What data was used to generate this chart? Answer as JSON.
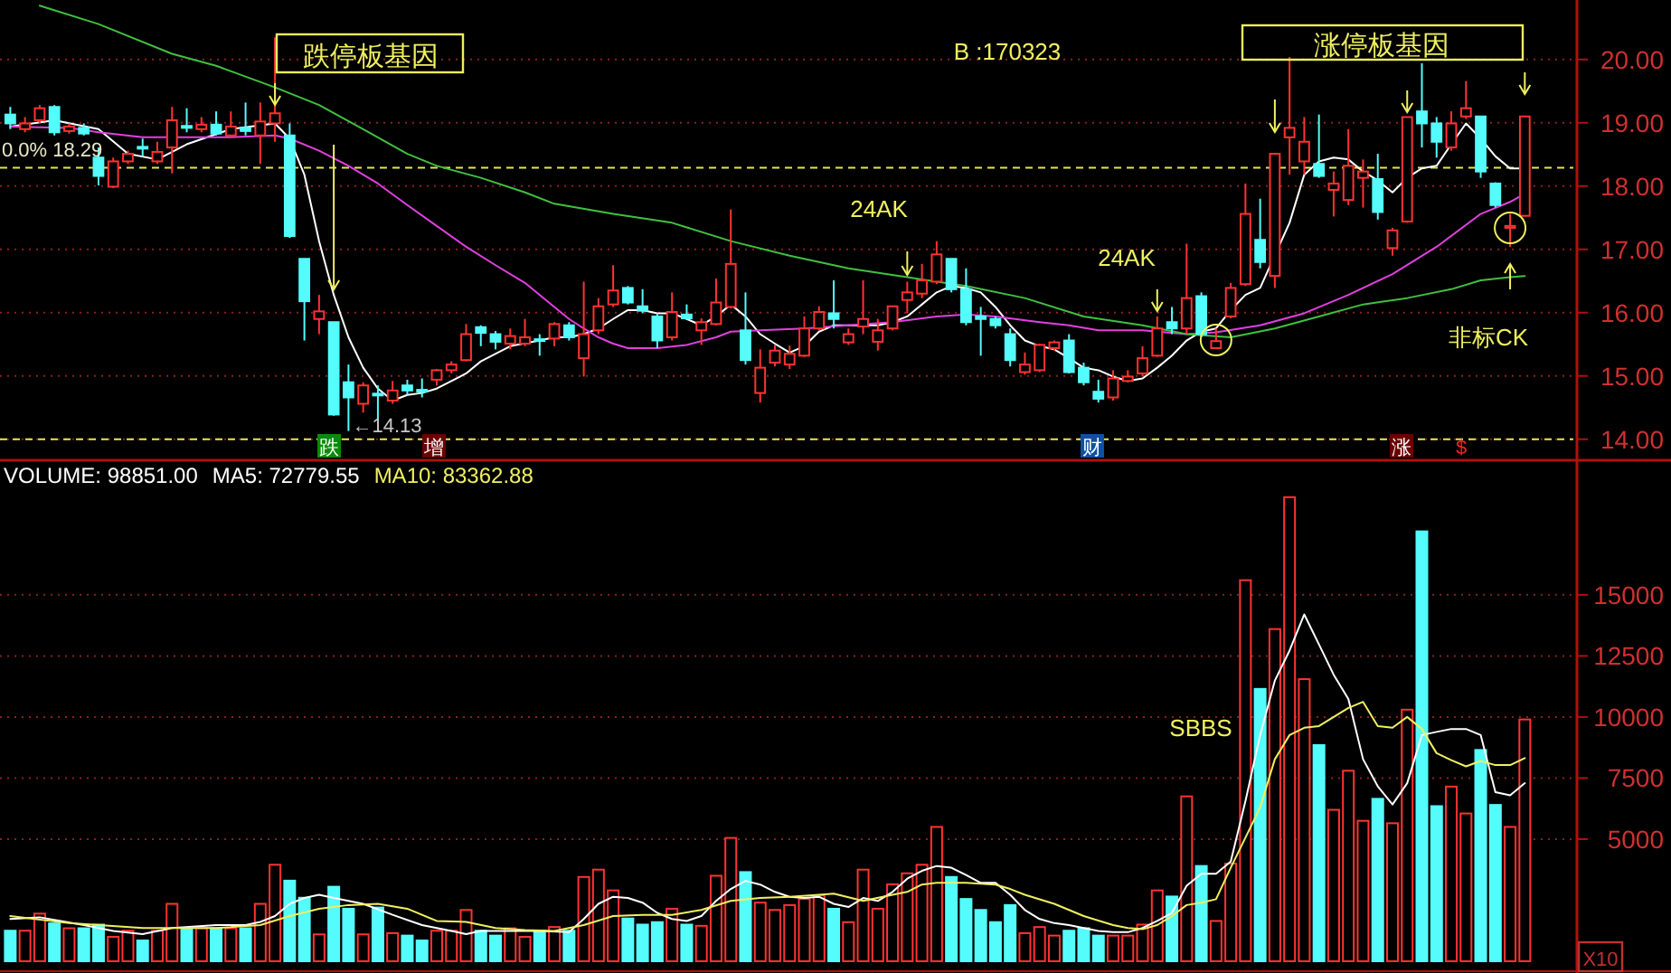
{
  "chart_data": [
    {
      "type": "candlestick",
      "categories": [
        null,
        null,
        null,
        null,
        null,
        null,
        null,
        null,
        null,
        null,
        null,
        null,
        null,
        null,
        null,
        null,
        null,
        null,
        null,
        null,
        null,
        null,
        null,
        null,
        null,
        null,
        null,
        null,
        null,
        null,
        null,
        null,
        null,
        null,
        null,
        null,
        null,
        null,
        null,
        null,
        null,
        null,
        null,
        null,
        null,
        null,
        null,
        null,
        null,
        null,
        null,
        null,
        null,
        null,
        null,
        null,
        null,
        null,
        null,
        null,
        null,
        null,
        null,
        null,
        null,
        null,
        null,
        null,
        null,
        null,
        null,
        null,
        null,
        null,
        null,
        null,
        null,
        null,
        null,
        null,
        null,
        null,
        null,
        null,
        null,
        null,
        null,
        null,
        null,
        null,
        null,
        null,
        null,
        null,
        null,
        null,
        null,
        null,
        null,
        null,
        null,
        null,
        null,
        null
      ],
      "ohlc": [
        [
          19.13,
          19.25,
          18.9,
          18.99
        ],
        [
          18.9,
          19.09,
          18.85,
          18.99
        ],
        [
          19.04,
          19.28,
          18.99,
          19.23
        ],
        [
          19.25,
          19.28,
          18.8,
          18.85
        ],
        [
          18.87,
          18.99,
          18.83,
          18.94
        ],
        [
          18.92,
          18.99,
          18.8,
          18.83
        ],
        [
          18.45,
          18.61,
          18.01,
          18.16
        ],
        [
          17.99,
          18.45,
          17.97,
          18.39
        ],
        [
          18.39,
          18.56,
          18.35,
          18.51
        ],
        [
          18.62,
          18.75,
          18.47,
          18.6
        ],
        [
          18.39,
          18.7,
          18.35,
          18.54
        ],
        [
          18.61,
          19.25,
          18.2,
          19.04
        ],
        [
          18.95,
          19.23,
          18.85,
          18.92
        ],
        [
          18.9,
          19.09,
          18.85,
          18.97
        ],
        [
          18.97,
          19.18,
          18.8,
          18.83
        ],
        [
          18.8,
          19.18,
          18.77,
          18.94
        ],
        [
          18.92,
          19.32,
          18.8,
          18.87
        ],
        [
          18.8,
          19.32,
          18.35,
          19.02
        ],
        [
          18.99,
          20.35,
          18.7,
          19.15
        ],
        [
          18.8,
          18.99,
          17.18,
          17.21
        ],
        [
          16.85,
          16.85,
          15.56,
          16.18
        ],
        [
          15.9,
          16.28,
          15.66,
          16.02
        ],
        [
          15.85,
          15.85,
          14.37,
          14.39
        ],
        [
          14.9,
          15.18,
          14.13,
          14.66
        ],
        [
          14.56,
          14.9,
          14.42,
          14.85
        ],
        [
          14.72,
          14.85,
          14.28,
          14.7
        ],
        [
          14.61,
          14.92,
          14.56,
          14.77
        ],
        [
          14.85,
          14.94,
          14.7,
          14.77
        ],
        [
          14.78,
          14.96,
          14.66,
          14.76
        ],
        [
          14.94,
          15.11,
          14.85,
          15.09
        ],
        [
          15.09,
          15.23,
          15.04,
          15.18
        ],
        [
          15.25,
          15.82,
          15.23,
          15.66
        ],
        [
          15.77,
          15.8,
          15.47,
          15.68
        ],
        [
          15.66,
          15.71,
          15.42,
          15.54
        ],
        [
          15.51,
          15.75,
          15.42,
          15.63
        ],
        [
          15.51,
          15.9,
          15.47,
          15.61
        ],
        [
          15.58,
          15.66,
          15.32,
          15.56
        ],
        [
          15.59,
          15.85,
          15.47,
          15.82
        ],
        [
          15.8,
          15.85,
          15.56,
          15.61
        ],
        [
          15.28,
          16.49,
          14.99,
          15.66
        ],
        [
          15.72,
          16.23,
          15.66,
          16.1
        ],
        [
          16.13,
          16.75,
          16.09,
          16.35
        ],
        [
          16.39,
          16.42,
          16.13,
          16.16
        ],
        [
          16.1,
          16.37,
          15.99,
          16.03
        ],
        [
          15.94,
          15.99,
          15.44,
          15.56
        ],
        [
          15.61,
          16.32,
          15.56,
          16.01
        ],
        [
          15.97,
          16.13,
          15.9,
          15.91
        ],
        [
          15.72,
          15.91,
          15.49,
          15.85
        ],
        [
          15.82,
          16.54,
          15.8,
          16.16
        ],
        [
          16.09,
          17.63,
          16.07,
          16.77
        ],
        [
          15.72,
          16.32,
          15.18,
          15.25
        ],
        [
          14.73,
          15.42,
          14.58,
          15.13
        ],
        [
          15.21,
          15.49,
          15.15,
          15.4
        ],
        [
          15.18,
          15.48,
          15.11,
          15.35
        ],
        [
          15.32,
          15.94,
          15.3,
          15.75
        ],
        [
          15.75,
          16.1,
          15.72,
          16.01
        ],
        [
          15.99,
          16.51,
          15.75,
          15.9
        ],
        [
          15.53,
          15.75,
          15.49,
          15.66
        ],
        [
          15.78,
          16.51,
          15.66,
          15.9
        ],
        [
          15.54,
          15.9,
          15.4,
          15.72
        ],
        [
          15.75,
          16.1,
          15.72,
          16.1
        ],
        [
          16.2,
          16.49,
          15.99,
          16.32
        ],
        [
          16.3,
          16.77,
          16.23,
          16.51
        ],
        [
          16.49,
          17.13,
          16.45,
          16.92
        ],
        [
          16.85,
          16.85,
          16.32,
          16.37
        ],
        [
          16.37,
          16.7,
          15.8,
          15.85
        ],
        [
          15.94,
          16.09,
          15.32,
          15.9
        ],
        [
          15.9,
          15.94,
          15.75,
          15.8
        ],
        [
          15.66,
          15.75,
          15.15,
          15.25
        ],
        [
          15.06,
          15.37,
          15.02,
          15.18
        ],
        [
          15.09,
          15.51,
          15.06,
          15.49
        ],
        [
          15.44,
          15.56,
          15.4,
          15.53
        ],
        [
          15.56,
          15.66,
          15.04,
          15.06
        ],
        [
          15.13,
          15.21,
          14.85,
          14.9
        ],
        [
          14.75,
          14.94,
          14.58,
          14.64
        ],
        [
          14.66,
          15.09,
          14.61,
          14.96
        ],
        [
          14.92,
          15.09,
          14.9,
          14.99
        ],
        [
          15.04,
          15.47,
          14.99,
          15.28
        ],
        [
          15.32,
          15.94,
          15.3,
          15.75
        ],
        [
          15.85,
          16.09,
          15.66,
          15.75
        ],
        [
          15.75,
          17.09,
          15.66,
          16.23
        ],
        [
          16.26,
          16.32,
          15.61,
          15.66
        ],
        [
          15.44,
          15.75,
          15.42,
          15.55
        ],
        [
          15.94,
          16.47,
          15.91,
          16.39
        ],
        [
          16.45,
          18.04,
          16.42,
          17.56
        ],
        [
          17.15,
          17.8,
          16.7,
          16.8
        ],
        [
          16.58,
          18.51,
          16.39,
          18.51
        ],
        [
          18.77,
          20.04,
          18.18,
          18.92
        ],
        [
          18.39,
          19.09,
          18.18,
          18.7
        ],
        [
          18.35,
          19.13,
          18.13,
          18.16
        ],
        [
          17.94,
          18.23,
          17.52,
          18.04
        ],
        [
          17.78,
          18.9,
          17.7,
          18.32
        ],
        [
          18.13,
          18.42,
          17.66,
          18.23
        ],
        [
          18.11,
          18.51,
          17.47,
          17.59
        ],
        [
          17.02,
          17.34,
          16.9,
          17.3
        ],
        [
          17.44,
          19.09,
          17.42,
          19.09
        ],
        [
          19.18,
          19.94,
          18.61,
          18.99
        ],
        [
          18.99,
          19.09,
          18.45,
          18.7
        ],
        [
          18.61,
          19.18,
          18.56,
          18.99
        ],
        [
          19.1,
          19.66,
          19.06,
          19.23
        ],
        [
          19.1,
          19.1,
          18.13,
          18.23
        ],
        [
          18.04,
          18.06,
          17.66,
          17.7
        ],
        [
          17.34,
          17.56,
          17.04,
          17.37
        ],
        [
          17.53,
          19.1,
          17.52,
          19.1
        ]
      ],
      "colors": [
        "#54fcfc",
        "#ff3232",
        "#ff3232",
        "#54fcfc",
        "#ff3232",
        "#54fcfc",
        "#54fcfc",
        "#ff3232",
        "#ff3232",
        "#54fcfc",
        "#ff3232",
        "#ff3232",
        "#54fcfc",
        "#ff3232",
        "#54fcfc",
        "#ff3232",
        "#54fcfc",
        "#ff3232",
        "#ff3232",
        "#54fcfc",
        "#54fcfc",
        "#ff3232",
        "#54fcfc",
        "#54fcfc",
        "#ff3232",
        "#54fcfc",
        "#ff3232",
        "#54fcfc",
        "#54fcfc",
        "#ff3232",
        "#ff3232",
        "#ff3232",
        "#54fcfc",
        "#54fcfc",
        "#ff3232",
        "#ff3232",
        "#54fcfc",
        "#ff3232",
        "#54fcfc",
        "#ff3232",
        "#ff3232",
        "#ff3232",
        "#54fcfc",
        "#54fcfc",
        "#54fcfc",
        "#ff3232",
        "#54fcfc",
        "#ff3232",
        "#ff3232",
        "#ff3232",
        "#54fcfc",
        "#ff3232",
        "#ff3232",
        "#ff3232",
        "#ff3232",
        "#ff3232",
        "#54fcfc",
        "#ff3232",
        "#ff3232",
        "#ff3232",
        "#ff3232",
        "#ff3232",
        "#ff3232",
        "#ff3232",
        "#54fcfc",
        "#54fcfc",
        "#54fcfc",
        "#54fcfc",
        "#54fcfc",
        "#ff3232",
        "#ff3232",
        "#ff3232",
        "#54fcfc",
        "#54fcfc",
        "#54fcfc",
        "#ff3232",
        "#ff3232",
        "#ff3232",
        "#ff3232",
        "#54fcfc",
        "#ff3232",
        "#54fcfc",
        "#ff3232",
        "#ff3232",
        "#ff3232",
        "#54fcfc",
        "#ff3232",
        "#ff3232",
        "#ff3232",
        "#54fcfc",
        "#ff3232",
        "#ff3232",
        "#ff3232",
        "#54fcfc",
        "#ff3232",
        "#ff3232",
        "#54fcfc",
        "#54fcfc",
        "#ff3232",
        "#ff3232",
        "#54fcfc",
        "#54fcfc",
        "#ff3232",
        "#ff3232"
      ],
      "series": [
        {
          "type": "line",
          "color": "#ffffff",
          "values": [
            18.94,
            null,
            null,
            19.04,
            null,
            null,
            18.9,
            null,
            18.51,
            null,
            18.42,
            null,
            18.66,
            null,
            null,
            18.9,
            null,
            null,
            18.99,
            18.75,
            18.18,
            17.13,
            16.28,
            15.61,
            15.13,
            14.8,
            14.61,
            14.7,
            14.73,
            14.8,
            null,
            15.04,
            15.23,
            null,
            15.47,
            null,
            15.56,
            15.61,
            15.61,
            15.66,
            15.75,
            15.9,
            16.04,
            16.04,
            15.99,
            15.99,
            15.9,
            15.8,
            15.94,
            16.13,
            15.94,
            15.66,
            15.51,
            15.37,
            15.47,
            15.7,
            15.8,
            null,
            15.8,
            15.8,
            15.85,
            15.94,
            16.13,
            16.32,
            16.42,
            16.39,
            16.32,
            16.09,
            15.8,
            15.56,
            15.47,
            15.42,
            15.28,
            15.13,
            15.09,
            14.99,
            14.92,
            14.96,
            15.13,
            15.32,
            15.56,
            15.7,
            15.75,
            16.04,
            16.28,
            16.39,
            null,
            17.42,
            18.18,
            18.39,
            18.45,
            18.42,
            18.23,
            18.09,
            17.9,
            18.13,
            18.28,
            18.32,
            18.66,
            18.99,
            18.75,
            18.47,
            18.28,
            18.28
          ]
        },
        {
          "type": "line",
          "color": "#e040e0",
          "values": [
            18.94,
            null,
            null,
            null,
            18.92,
            null,
            18.85,
            null,
            null,
            18.77,
            null,
            null,
            18.77,
            null,
            null,
            18.77,
            null,
            null,
            18.8,
            18.75,
            null,
            18.56,
            null,
            18.32,
            null,
            18.04,
            null,
            17.7,
            null,
            17.37,
            null,
            17.04,
            null,
            16.75,
            null,
            16.47,
            null,
            16.09,
            15.9,
            15.75,
            15.61,
            15.51,
            15.44,
            null,
            15.44,
            null,
            15.49,
            null,
            15.61,
            15.7,
            null,
            15.72,
            null,
            null,
            15.75,
            null,
            null,
            15.8,
            null,
            null,
            15.85,
            null,
            null,
            15.94,
            null,
            15.97,
            null,
            15.94,
            null,
            null,
            15.85,
            null,
            15.8,
            null,
            15.72,
            null,
            null,
            15.72,
            null,
            null,
            15.66,
            null,
            15.69,
            null,
            null,
            15.8,
            null,
            null,
            15.99,
            null,
            null,
            16.28,
            null,
            null,
            16.61,
            null,
            null,
            17.04,
            null,
            null,
            17.56,
            null,
            17.75,
            17.88
          ]
        },
        {
          "type": "line",
          "color": "#40c040",
          "values": [
            null,
            null,
            20.85,
            null,
            null,
            null,
            20.56,
            null,
            null,
            null,
            null,
            20.09,
            null,
            null,
            19.9,
            null,
            null,
            null,
            19.56,
            null,
            null,
            19.28,
            null,
            null,
            18.9,
            null,
            null,
            18.51,
            null,
            18.32,
            null,
            null,
            18.13,
            null,
            null,
            17.9,
            null,
            17.72,
            null,
            null,
            null,
            17.56,
            null,
            null,
            null,
            17.42,
            null,
            null,
            null,
            17.13,
            null,
            null,
            null,
            16.9,
            null,
            null,
            null,
            16.7,
            null,
            null,
            null,
            16.56,
            null,
            null,
            null,
            16.42,
            null,
            null,
            null,
            16.23,
            null,
            null,
            null,
            15.94,
            null,
            null,
            null,
            15.8,
            null,
            null,
            15.66,
            null,
            null,
            15.61,
            null,
            null,
            15.75,
            null,
            null,
            15.94,
            null,
            null,
            16.13,
            null,
            null,
            16.23,
            null,
            null,
            16.37,
            null,
            16.51,
            null,
            16.56,
            16.58
          ]
        }
      ],
      "ylim": [
        13.71,
        20.94
      ],
      "yticks": [
        {
          "value": 14,
          "label": "14.00"
        },
        {
          "value": 15,
          "label": "15.00"
        },
        {
          "value": 16,
          "label": "16.00"
        },
        {
          "value": 17,
          "label": "17.00"
        },
        {
          "value": 18,
          "label": "18.00"
        },
        {
          "value": 19,
          "label": "19.00"
        },
        {
          "value": 20,
          "label": "20.00"
        }
      ],
      "grid": "y",
      "tick_labels": "y",
      "ref_lines": [
        {
          "axis": "y",
          "value": 18.29,
          "label": "0.0% 18.29",
          "color": "#e6e64c",
          "line_style": "dashed"
        },
        {
          "axis": "y",
          "value": 14,
          "color": "#e6e64c",
          "line_style": "dashed"
        }
      ],
      "annotations": [
        "跌停板基因",
        "B :170323",
        "24AK",
        "24AK",
        "涨停板基因",
        "非标CK",
        "←14.13",
        "跌",
        "增",
        "财",
        "涨",
        "$"
      ]
    },
    {
      "type": "bar",
      "title": "VOLUME: 98851.00",
      "categories": [
        null,
        null,
        null,
        null,
        null,
        null,
        null,
        null,
        null,
        null,
        null,
        null,
        null,
        null,
        null,
        null,
        null,
        null,
        null,
        null,
        null,
        null,
        null,
        null,
        null,
        null,
        null,
        null,
        null,
        null,
        null,
        null,
        null,
        null,
        null,
        null,
        null,
        null,
        null,
        null,
        null,
        null,
        null,
        null,
        null,
        null,
        null,
        null,
        null,
        null,
        null,
        null,
        null,
        null,
        null,
        null,
        null,
        null,
        null,
        null,
        null,
        null,
        null,
        null,
        null,
        null,
        null,
        null,
        null,
        null,
        null,
        null,
        null,
        null,
        null,
        null,
        null,
        null,
        null,
        null,
        null,
        null,
        null,
        null,
        null,
        null,
        null,
        null,
        null,
        null,
        null,
        null,
        null,
        null,
        null,
        null,
        null,
        null,
        null,
        null,
        null,
        null,
        null,
        null
      ],
      "series": [
        {
          "type": "bar",
          "values": [
            1250,
            1250,
            1950,
            1550,
            1350,
            1350,
            1500,
            1000,
            1250,
            850,
            1250,
            2350,
            1350,
            1350,
            1350,
            1350,
            1350,
            2350,
            3950,
            3300,
            2600,
            1100,
            3050,
            2150,
            1100,
            2200,
            1150,
            1050,
            850,
            1250,
            1250,
            2100,
            1250,
            1050,
            1350,
            1000,
            1250,
            1400,
            1250,
            3450,
            3750,
            2900,
            1750,
            1500,
            1600,
            2150,
            1500,
            1450,
            3500,
            5050,
            3650,
            2400,
            2100,
            2300,
            2550,
            2700,
            2150,
            1600,
            3750,
            2150,
            3150,
            3600,
            3950,
            5500,
            3450,
            2550,
            2100,
            1600,
            2300,
            1150,
            1400,
            1050,
            1250,
            1350,
            1050,
            1050,
            1050,
            1500,
            2900,
            2650,
            6750,
            3900,
            1650,
            4000,
            15600,
            11150,
            13600,
            19000,
            11550,
            8850,
            6200,
            7800,
            5750,
            6650,
            5650,
            10300,
            17600,
            6350,
            7150,
            6050,
            8650,
            6400,
            5500,
            9900
          ],
          "colors": [
            "#54fcfc",
            "#ff3232",
            "#ff3232",
            "#54fcfc",
            "#ff3232",
            "#54fcfc",
            "#54fcfc",
            "#ff3232",
            "#ff3232",
            "#54fcfc",
            "#ff3232",
            "#ff3232",
            "#54fcfc",
            "#ff3232",
            "#54fcfc",
            "#ff3232",
            "#54fcfc",
            "#ff3232",
            "#ff3232",
            "#54fcfc",
            "#54fcfc",
            "#ff3232",
            "#54fcfc",
            "#54fcfc",
            "#ff3232",
            "#54fcfc",
            "#ff3232",
            "#54fcfc",
            "#54fcfc",
            "#ff3232",
            "#ff3232",
            "#ff3232",
            "#54fcfc",
            "#54fcfc",
            "#ff3232",
            "#ff3232",
            "#54fcfc",
            "#ff3232",
            "#54fcfc",
            "#ff3232",
            "#ff3232",
            "#ff3232",
            "#54fcfc",
            "#54fcfc",
            "#54fcfc",
            "#ff3232",
            "#54fcfc",
            "#ff3232",
            "#ff3232",
            "#ff3232",
            "#54fcfc",
            "#ff3232",
            "#ff3232",
            "#ff3232",
            "#ff3232",
            "#ff3232",
            "#54fcfc",
            "#ff3232",
            "#ff3232",
            "#ff3232",
            "#ff3232",
            "#ff3232",
            "#ff3232",
            "#ff3232",
            "#54fcfc",
            "#54fcfc",
            "#54fcfc",
            "#54fcfc",
            "#54fcfc",
            "#ff3232",
            "#ff3232",
            "#ff3232",
            "#54fcfc",
            "#54fcfc",
            "#54fcfc",
            "#ff3232",
            "#ff3232",
            "#ff3232",
            "#ff3232",
            "#54fcfc",
            "#ff3232",
            "#54fcfc",
            "#ff3232",
            "#ff3232",
            "#ff3232",
            "#54fcfc",
            "#ff3232",
            "#ff3232",
            "#ff3232",
            "#54fcfc",
            "#ff3232",
            "#ff3232",
            "#ff3232",
            "#54fcfc",
            "#ff3232",
            "#ff3232",
            "#54fcfc",
            "#54fcfc",
            "#ff3232",
            "#ff3232",
            "#54fcfc",
            "#54fcfc",
            "#ff3232",
            "#ff3232"
          ]
        },
        {
          "type": "line",
          "name": "MA5: 72779.55",
          "color": "#ffffff",
          "values": [
            1730,
            null,
            1800,
            null,
            null,
            1480,
            null,
            1240,
            null,
            1110,
            null,
            1360,
            null,
            null,
            1480,
            null,
            1480,
            1610,
            1850,
            2350,
            2590,
            2720,
            2590,
            null,
            2350,
            null,
            1900,
            null,
            1480,
            null,
            1240,
            1110,
            1240,
            null,
            1240,
            null,
            1240,
            null,
            1190,
            1730,
            2350,
            2640,
            2590,
            2400,
            1980,
            1730,
            1650,
            1850,
            2470,
            2960,
            3290,
            3140,
            2840,
            2640,
            2590,
            2640,
            2350,
            2220,
            2590,
            2470,
            2840,
            3380,
            3700,
            3900,
            3830,
            3530,
            3210,
            3210,
            2720,
            2100,
            1730,
            1560,
            1480,
            1360,
            1240,
            1190,
            1190,
            1360,
            1650,
            1980,
            3090,
            3580,
            3580,
            4080,
            6550,
            9260,
            11490,
            12720,
            14200,
            12970,
            11730,
            10740,
            8270,
            7160,
            6420,
            7290,
            9260,
            9390,
            9510,
            9510,
            9260,
            6920,
            6790,
            7290
          ]
        },
        {
          "type": "line",
          "name": "MA10: 83362.88",
          "color": "#f0f060",
          "values": [
            1850,
            null,
            null,
            null,
            1560,
            null,
            null,
            null,
            null,
            1360,
            null,
            null,
            null,
            null,
            1360,
            null,
            null,
            1480,
            null,
            1850,
            null,
            2150,
            null,
            2300,
            null,
            2350,
            null,
            2150,
            null,
            1650,
            null,
            1610,
            null,
            1360,
            null,
            1280,
            null,
            1240,
            null,
            1480,
            null,
            1850,
            null,
            1900,
            null,
            1900,
            null,
            2100,
            null,
            2470,
            null,
            2590,
            null,
            2640,
            null,
            2720,
            2770,
            null,
            2470,
            null,
            2720,
            2840,
            3140,
            3210,
            null,
            3210,
            null,
            3140,
            2960,
            2720,
            null,
            2350,
            null,
            1850,
            null,
            1480,
            1360,
            1310,
            1480,
            1850,
            2300,
            2400,
            2540,
            3830,
            5060,
            6300,
            8270,
            9260,
            9560,
            9630,
            10000,
            10370,
            10620,
            9630,
            9560,
            10000,
            9510,
            8520,
            8230,
            7980,
            8200,
            8030,
            8030,
            8320
          ]
        }
      ],
      "ylim": [
        0,
        20400
      ],
      "yticks": [
        5000,
        7500,
        10000,
        12500,
        15000
      ],
      "grid": "y",
      "tick_labels": "y",
      "legend": "top left",
      "annotations": [
        "SBBS",
        "X10"
      ]
    }
  ]
}
